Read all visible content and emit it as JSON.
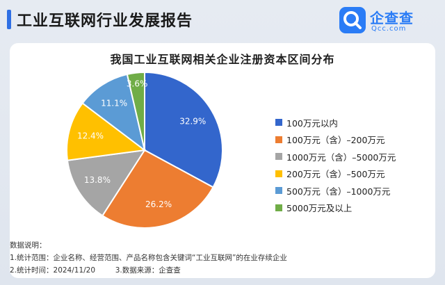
{
  "header": {
    "title": "工业互联网行业发展报告"
  },
  "logo": {
    "name": "企查查",
    "sub": "Qcc.com"
  },
  "chart_data": {
    "type": "pie",
    "title": "我国工业互联网相关企业注册资本区间分布",
    "slices": [
      {
        "label": "100万元以内",
        "value": 32.9,
        "display": "32.9%",
        "color": "#3366cc"
      },
      {
        "label": "100万元（含）–200万元",
        "value": 26.2,
        "display": "26.2%",
        "color": "#ed7d31"
      },
      {
        "label": "1000万元（含）–5000万元",
        "value": 13.8,
        "display": "13.8%",
        "color": "#a5a5a5"
      },
      {
        "label": "200万元（含）–500万元",
        "value": 12.4,
        "display": "12.4%",
        "color": "#ffc000"
      },
      {
        "label": "500万元（含）–1000万元",
        "value": 11.1,
        "display": "11.1%",
        "color": "#5b9bd5"
      },
      {
        "label": "5000万元及以上",
        "value": 3.6,
        "display": "3.6%",
        "color": "#70ad47"
      }
    ],
    "legend_position": "right"
  },
  "notes": {
    "heading": "数据说明：",
    "line1": "1.统计范围：企业名称、经营范围、产品名称包含关键词“工业互联网”的在业存续企业",
    "line2a": "2.统计时间：2024/11/20",
    "line2b": "3.数据来源：企查查"
  }
}
